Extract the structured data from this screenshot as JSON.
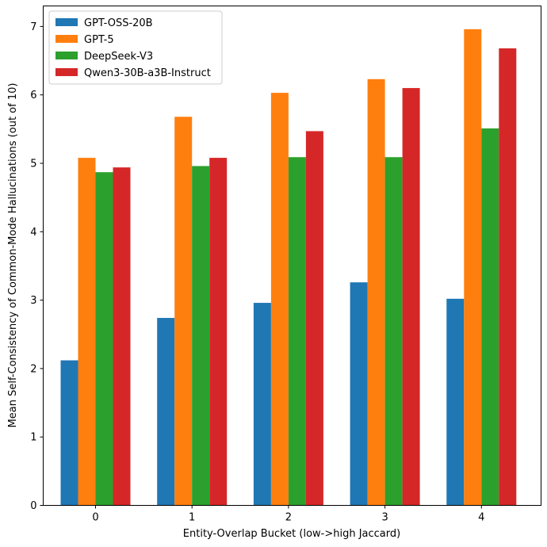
{
  "chart_data": {
    "type": "bar",
    "title": "",
    "xlabel": "Entity-Overlap Bucket (low->high Jaccard)",
    "ylabel": "Mean Self-Consistency of Common-Mode Hallucinations (out of 10)",
    "categories": [
      "0",
      "1",
      "2",
      "3",
      "4"
    ],
    "ylim": [
      0,
      7.3
    ],
    "yticks": [
      "0",
      "1",
      "2",
      "3",
      "4",
      "5",
      "6",
      "7"
    ],
    "grid": false,
    "legend_position": "top-left",
    "series": [
      {
        "name": "GPT-OSS-20B",
        "color": "#1f77b4",
        "values": [
          2.12,
          2.74,
          2.96,
          3.26,
          3.02
        ]
      },
      {
        "name": "GPT-5",
        "color": "#ff7f0e",
        "values": [
          5.08,
          5.68,
          6.03,
          6.23,
          6.96
        ]
      },
      {
        "name": "DeepSeek-V3",
        "color": "#2ca02c",
        "values": [
          4.87,
          4.96,
          5.09,
          5.09,
          5.51
        ]
      },
      {
        "name": "Qwen3-30B-a3B-Instruct",
        "color": "#d62728",
        "values": [
          4.94,
          5.08,
          5.47,
          6.1,
          6.68
        ]
      }
    ]
  }
}
